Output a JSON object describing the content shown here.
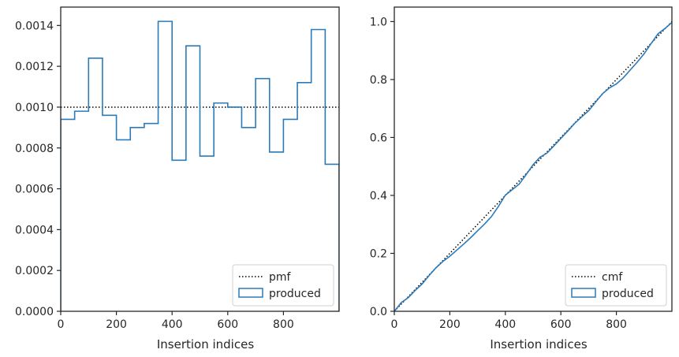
{
  "chart_data": [
    {
      "type": "histogram",
      "xlabel": "Insertion indices",
      "ylabel": "",
      "xlim": [
        0,
        1000
      ],
      "ylim": [
        0,
        0.00149
      ],
      "xticks": [
        0,
        200,
        400,
        600,
        800
      ],
      "xtick_labels": [
        "0",
        "200",
        "400",
        "600",
        "800"
      ],
      "yticks": [
        0,
        0.0002,
        0.0004,
        0.0006,
        0.0008,
        0.001,
        0.0012,
        0.0014
      ],
      "ytick_labels": [
        "0.0000",
        "0.0002",
        "0.0004",
        "0.0006",
        "0.0008",
        "0.0010",
        "0.0012",
        "0.0014"
      ],
      "grid": false,
      "legend_position": "lower right",
      "series": [
        {
          "name": "pmf",
          "style": "dotted",
          "color": "#000000",
          "x": [
            0,
            1000
          ],
          "y": [
            0.001,
            0.001
          ]
        },
        {
          "name": "produced",
          "style": "step",
          "color": "#2b7bba",
          "bin_edges": [
            0,
            50,
            100,
            150,
            200,
            250,
            300,
            350,
            400,
            450,
            500,
            550,
            600,
            650,
            700,
            750,
            800,
            850,
            900,
            950,
            1000
          ],
          "values": [
            0.00094,
            0.00098,
            0.00124,
            0.00096,
            0.00084,
            0.0009,
            0.00092,
            0.00142,
            0.00074,
            0.0013,
            0.00076,
            0.00102,
            0.001,
            0.0009,
            0.00114,
            0.00078,
            0.00094,
            0.00112,
            0.00138,
            0.00072
          ]
        }
      ]
    },
    {
      "type": "line",
      "xlabel": "Insertion indices",
      "ylabel": "",
      "xlim": [
        0,
        1000
      ],
      "ylim": [
        0,
        1.05
      ],
      "xticks": [
        0,
        200,
        400,
        600,
        800
      ],
      "xtick_labels": [
        "0",
        "200",
        "400",
        "600",
        "800"
      ],
      "yticks": [
        0,
        0.2,
        0.4,
        0.6,
        0.8,
        1.0
      ],
      "ytick_labels": [
        "0.0",
        "0.2",
        "0.4",
        "0.6",
        "0.8",
        "1.0"
      ],
      "grid": false,
      "legend_position": "lower right",
      "series": [
        {
          "name": "cmf",
          "style": "dotted",
          "color": "#000000",
          "x": [
            0,
            1000
          ],
          "y": [
            0,
            1.0
          ]
        },
        {
          "name": "produced",
          "style": "line",
          "color": "#2b7bba",
          "x": [
            0,
            25,
            50,
            75,
            100,
            125,
            150,
            175,
            200,
            225,
            250,
            275,
            300,
            325,
            350,
            375,
            400,
            425,
            450,
            475,
            500,
            525,
            550,
            575,
            600,
            625,
            650,
            675,
            700,
            725,
            750,
            775,
            800,
            825,
            850,
            875,
            900,
            925,
            950,
            975,
            1000
          ],
          "y": [
            0,
            0.03,
            0.047,
            0.072,
            0.094,
            0.123,
            0.15,
            0.172,
            0.19,
            0.211,
            0.232,
            0.254,
            0.278,
            0.301,
            0.327,
            0.362,
            0.401,
            0.42,
            0.439,
            0.472,
            0.506,
            0.532,
            0.546,
            0.571,
            0.597,
            0.622,
            0.649,
            0.671,
            0.692,
            0.722,
            0.751,
            0.771,
            0.785,
            0.806,
            0.833,
            0.86,
            0.889,
            0.924,
            0.958,
            0.976,
            0.997
          ]
        }
      ]
    }
  ]
}
